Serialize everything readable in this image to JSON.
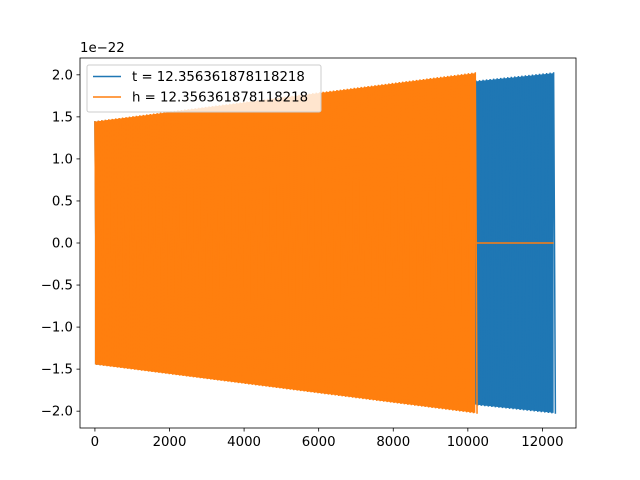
{
  "chart_data": {
    "type": "line",
    "title": "",
    "xlabel": "",
    "ylabel": "",
    "xlim": [
      -400,
      12900
    ],
    "ylim": [
      -2.2,
      2.2
    ],
    "y_offset_label": "1e−22",
    "x_ticks": [
      {
        "value": 0,
        "label": "0"
      },
      {
        "value": 2000,
        "label": "2000"
      },
      {
        "value": 4000,
        "label": "4000"
      },
      {
        "value": 6000,
        "label": "6000"
      },
      {
        "value": 8000,
        "label": "8000"
      },
      {
        "value": 10000,
        "label": "10000"
      },
      {
        "value": 12000,
        "label": "12000"
      }
    ],
    "y_ticks": [
      {
        "value": 2.0,
        "label": "2.0"
      },
      {
        "value": 1.5,
        "label": "1.5"
      },
      {
        "value": 1.0,
        "label": "1.0"
      },
      {
        "value": 0.5,
        "label": "0.5"
      },
      {
        "value": 0.0,
        "label": "0.0"
      },
      {
        "value": -0.5,
        "label": "−0.5"
      },
      {
        "value": -1.0,
        "label": "−1.0"
      },
      {
        "value": -1.5,
        "label": "−1.5"
      },
      {
        "value": -2.0,
        "label": "−2.0"
      }
    ],
    "grid": false,
    "legend_position": "top-left",
    "series": [
      {
        "name": "t = 12.356361878118218",
        "color": "#1f77b4",
        "kind": "oscillation",
        "x_start": 0,
        "x_end": 12300,
        "amplitude_start": 1.45,
        "amplitude_end": 2.03,
        "cycles": 130,
        "flat_until": null
      },
      {
        "name": "h = 12.356361878118218",
        "color": "#ff7f0e",
        "kind": "oscillation",
        "x_start": 0,
        "x_end": 10200,
        "amplitude_start": 1.45,
        "amplitude_end": 2.03,
        "cycles": 110,
        "flat_until": 12300
      }
    ]
  }
}
